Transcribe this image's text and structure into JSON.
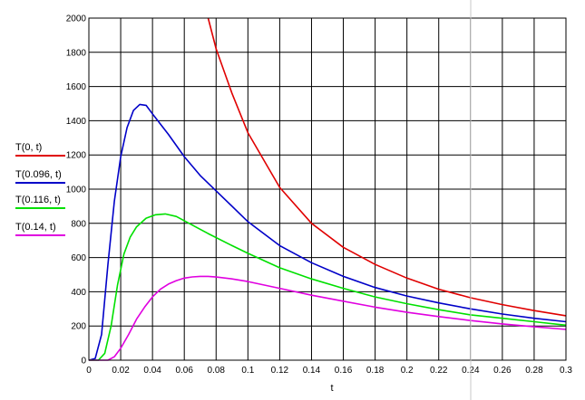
{
  "chart_data": {
    "type": "line",
    "title": "",
    "xlabel": "t",
    "ylabel": "",
    "xlim": [
      0,
      0.3
    ],
    "ylim": [
      0,
      2000
    ],
    "grid": true,
    "legend_placement": "left",
    "x_ticks": [
      0,
      0.02,
      0.04,
      0.06,
      0.08,
      0.1,
      0.12,
      0.14,
      0.16,
      0.18,
      0.2,
      0.22,
      0.24,
      0.26,
      0.28,
      0.3
    ],
    "x_tick_labels": [
      "0",
      "0.02",
      "0.04",
      "0.06",
      "0.08",
      "0.1",
      "0.12",
      "0.14",
      "0.16",
      "0.18",
      "0.2",
      "0.22",
      "0.24",
      "0.26",
      "0.28",
      "0.3"
    ],
    "y_ticks": [
      0,
      200,
      400,
      600,
      800,
      1000,
      1200,
      1400,
      1600,
      1800,
      2000
    ],
    "y_tick_labels": [
      "0",
      "200",
      "400",
      "600",
      "800",
      "1000",
      "1200",
      "1400",
      "1600",
      "1800",
      "2000"
    ],
    "series": [
      {
        "name": "T(0, t)",
        "color": "#e00000",
        "x": [
          0.075,
          0.08,
          0.09,
          0.1,
          0.12,
          0.14,
          0.16,
          0.18,
          0.2,
          0.22,
          0.24,
          0.26,
          0.28,
          0.3
        ],
        "y": [
          2000,
          1820,
          1560,
          1330,
          1010,
          800,
          660,
          560,
          480,
          415,
          365,
          325,
          290,
          260
        ]
      },
      {
        "name": "T(0.096, t)",
        "color": "#0000c8",
        "x": [
          0,
          0.004,
          0.008,
          0.012,
          0.016,
          0.02,
          0.024,
          0.028,
          0.032,
          0.036,
          0.04,
          0.05,
          0.06,
          0.07,
          0.08,
          0.1,
          0.12,
          0.14,
          0.16,
          0.18,
          0.2,
          0.22,
          0.24,
          0.26,
          0.28,
          0.3
        ],
        "y": [
          0,
          10,
          150,
          560,
          930,
          1190,
          1360,
          1460,
          1495,
          1490,
          1440,
          1320,
          1190,
          1080,
          990,
          810,
          670,
          570,
          490,
          425,
          375,
          335,
          300,
          270,
          245,
          225
        ]
      },
      {
        "name": "T(0.116, t)",
        "color": "#00e000",
        "x": [
          0,
          0.006,
          0.01,
          0.014,
          0.018,
          0.022,
          0.026,
          0.03,
          0.036,
          0.042,
          0.048,
          0.055,
          0.065,
          0.075,
          0.09,
          0.1,
          0.12,
          0.14,
          0.16,
          0.18,
          0.2,
          0.22,
          0.24,
          0.26,
          0.28,
          0.3
        ],
        "y": [
          0,
          0,
          40,
          200,
          440,
          620,
          720,
          780,
          830,
          850,
          855,
          840,
          790,
          740,
          670,
          625,
          540,
          475,
          420,
          370,
          330,
          295,
          265,
          245,
          225,
          205
        ]
      },
      {
        "name": "T(0.14, t)",
        "color": "#e000e0",
        "x": [
          0,
          0.012,
          0.016,
          0.02,
          0.025,
          0.03,
          0.035,
          0.04,
          0.045,
          0.05,
          0.055,
          0.06,
          0.065,
          0.07,
          0.075,
          0.08,
          0.09,
          0.1,
          0.12,
          0.14,
          0.16,
          0.18,
          0.2,
          0.22,
          0.24,
          0.26,
          0.28,
          0.3
        ],
        "y": [
          0,
          0,
          20,
          70,
          150,
          240,
          310,
          370,
          415,
          445,
          465,
          480,
          487,
          490,
          490,
          486,
          475,
          460,
          420,
          380,
          345,
          310,
          280,
          255,
          232,
          212,
          195,
          180
        ]
      }
    ]
  }
}
